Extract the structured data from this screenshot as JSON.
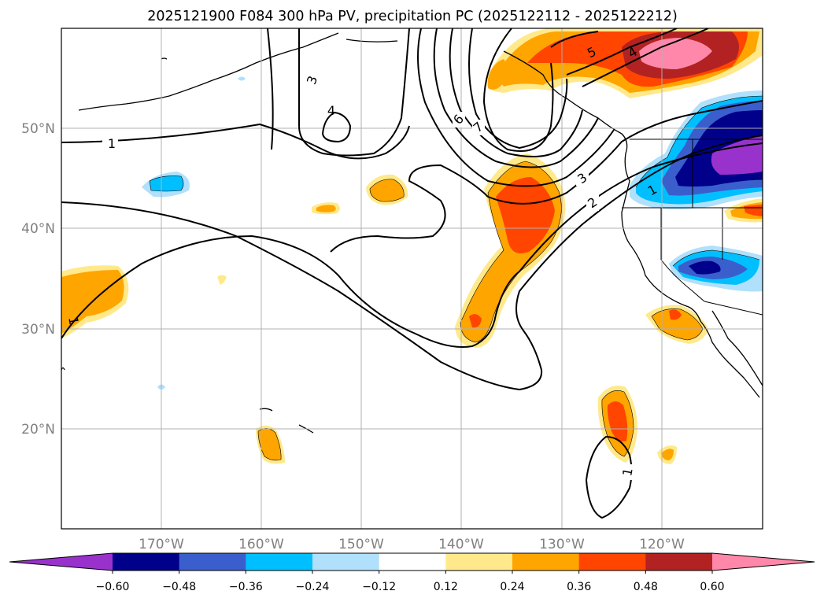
{
  "chart_data": {
    "type": "map-contour",
    "title": "2025121900 F084 300 hPa PV, precipitation PC (2025122112 - 2025122212)",
    "lon_range": [
      -180,
      -110
    ],
    "lat_range": [
      10,
      60
    ],
    "lon_ticks": [
      -170,
      -160,
      -150,
      -140,
      -130,
      -120
    ],
    "lon_tick_labels": [
      "170°W",
      "160°W",
      "150°W",
      "140°W",
      "130°W",
      "120°W"
    ],
    "lat_ticks": [
      20,
      30,
      40,
      50
    ],
    "lat_tick_labels": [
      "20°N",
      "30°N",
      "40°N",
      "50°N"
    ],
    "grid": true,
    "colorbar": {
      "levels": [
        -0.6,
        -0.48,
        -0.36,
        -0.24,
        -0.12,
        0.12,
        0.24,
        0.36,
        0.48,
        0.6
      ],
      "tick_labels": [
        "−0.60",
        "−0.48",
        "−0.36",
        "−0.24",
        "−0.12",
        "0.12",
        "0.24",
        "0.36",
        "0.48",
        "0.60"
      ],
      "colors": [
        "#9932cc",
        "#00008b",
        "#3a5fcd",
        "#00bfff",
        "#b0e0fb",
        "#ffffff",
        "#ffe98a",
        "#ffa500",
        "#ff4500",
        "#b22222",
        "#ff88aa"
      ],
      "extend": "both"
    },
    "pv_contour_labels": [
      {
        "text": "1",
        "lon": -175,
        "lat": 48.5
      },
      {
        "text": "3",
        "lon": -155.5,
        "lat": 55
      },
      {
        "text": "4",
        "lon": -151,
        "lat": 51
      },
      {
        "text": "6",
        "lon": -140,
        "lat": 51
      },
      {
        "text": "7",
        "lon": -138,
        "lat": 50
      },
      {
        "text": "5",
        "lon": -125,
        "lat": 58
      },
      {
        "text": "4",
        "lon": -120.5,
        "lat": 58
      },
      {
        "text": "3",
        "lon": -128,
        "lat": 44.5
      },
      {
        "text": "2",
        "lon": -129,
        "lat": 42.5
      },
      {
        "text": "1",
        "lon": -120.6,
        "lat": 42.5
      },
      {
        "text": "1",
        "lon": -179,
        "lat": 30.5
      },
      {
        "text": "1",
        "lon": -123,
        "lat": 13.5
      }
    ]
  }
}
